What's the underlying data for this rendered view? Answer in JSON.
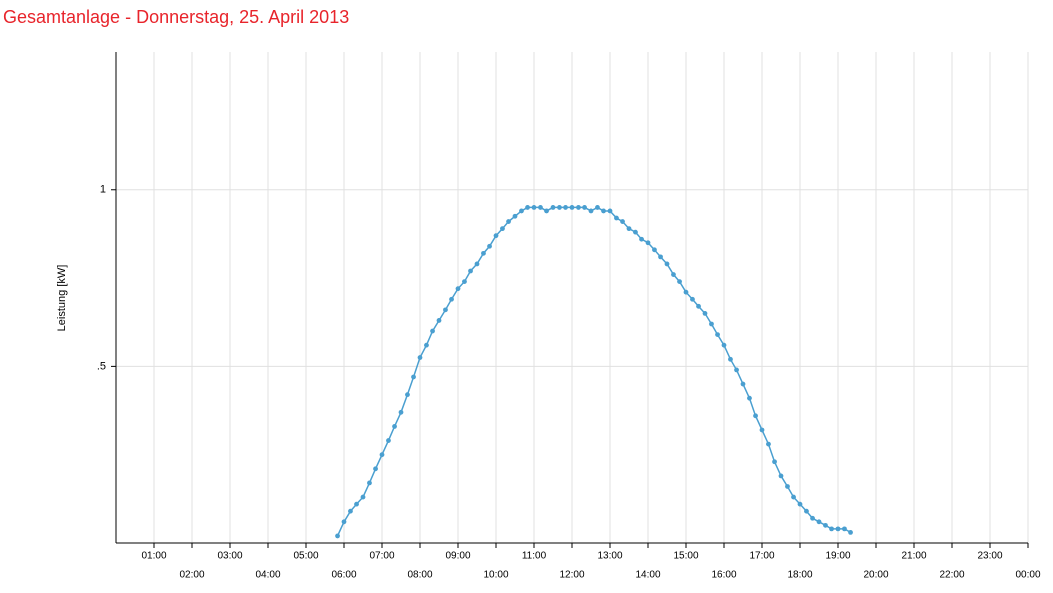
{
  "chart_data": {
    "type": "line",
    "title": "Gesamtanlage - Donnerstag, 25. April 2013",
    "ylabel": "Leistung [kW]",
    "xlim": [
      0,
      24
    ],
    "ylim": [
      0,
      1.39
    ],
    "xticks": [
      {
        "value": 1,
        "label": "01:00"
      },
      {
        "value": 2,
        "label": "02:00"
      },
      {
        "value": 3,
        "label": "03:00"
      },
      {
        "value": 4,
        "label": "04:00"
      },
      {
        "value": 5,
        "label": "05:00"
      },
      {
        "value": 6,
        "label": "06:00"
      },
      {
        "value": 7,
        "label": "07:00"
      },
      {
        "value": 8,
        "label": "08:00"
      },
      {
        "value": 9,
        "label": "09:00"
      },
      {
        "value": 10,
        "label": "10:00"
      },
      {
        "value": 11,
        "label": "11:00"
      },
      {
        "value": 12,
        "label": "12:00"
      },
      {
        "value": 13,
        "label": "13:00"
      },
      {
        "value": 14,
        "label": "14:00"
      },
      {
        "value": 15,
        "label": "15:00"
      },
      {
        "value": 16,
        "label": "16:00"
      },
      {
        "value": 17,
        "label": "17:00"
      },
      {
        "value": 18,
        "label": "18:00"
      },
      {
        "value": 19,
        "label": "19:00"
      },
      {
        "value": 20,
        "label": "20:00"
      },
      {
        "value": 21,
        "label": "21:00"
      },
      {
        "value": 22,
        "label": "22:00"
      },
      {
        "value": 23,
        "label": "23:00"
      },
      {
        "value": 24,
        "label": "00:00"
      }
    ],
    "yticks": [
      {
        "value": 0.5,
        "label": ".5"
      },
      1
    ],
    "grid": true,
    "color": "#4a9fd0",
    "x": [
      5.83,
      6,
      6.17,
      6.33,
      6.5,
      6.67,
      6.83,
      7,
      7.17,
      7.33,
      7.5,
      7.67,
      7.83,
      8,
      8.17,
      8.33,
      8.5,
      8.67,
      8.83,
      9,
      9.17,
      9.33,
      9.5,
      9.67,
      9.83,
      10,
      10.17,
      10.33,
      10.5,
      10.67,
      10.83,
      11,
      11.17,
      11.33,
      11.5,
      11.67,
      11.83,
      12,
      12.17,
      12.33,
      12.5,
      12.67,
      12.83,
      13,
      13.17,
      13.33,
      13.5,
      13.67,
      13.83,
      14,
      14.17,
      14.33,
      14.5,
      14.67,
      14.83,
      15,
      15.17,
      15.33,
      15.5,
      15.67,
      15.83,
      16,
      16.17,
      16.33,
      16.5,
      16.67,
      16.83,
      17,
      17.17,
      17.33,
      17.5,
      17.67,
      17.83,
      18,
      18.17,
      18.33,
      18.5,
      18.67,
      18.83,
      19,
      19.17,
      19.33
    ],
    "values": [
      0.02,
      0.06,
      0.09,
      0.11,
      0.13,
      0.17,
      0.21,
      0.25,
      0.29,
      0.33,
      0.37,
      0.42,
      0.47,
      0.525,
      0.56,
      0.6,
      0.63,
      0.66,
      0.69,
      0.72,
      0.74,
      0.77,
      0.79,
      0.82,
      0.84,
      0.87,
      0.89,
      0.91,
      0.925,
      0.94,
      0.95,
      0.95,
      0.95,
      0.94,
      0.95,
      0.95,
      0.95,
      0.95,
      0.95,
      0.95,
      0.94,
      0.95,
      0.94,
      0.94,
      0.92,
      0.91,
      0.89,
      0.88,
      0.86,
      0.85,
      0.83,
      0.81,
      0.79,
      0.76,
      0.74,
      0.71,
      0.69,
      0.67,
      0.65,
      0.62,
      0.59,
      0.56,
      0.52,
      0.49,
      0.45,
      0.41,
      0.36,
      0.32,
      0.28,
      0.23,
      0.19,
      0.16,
      0.13,
      0.11,
      0.09,
      0.07,
      0.06,
      0.05,
      0.04,
      0.04,
      0.04,
      0.03
    ]
  }
}
